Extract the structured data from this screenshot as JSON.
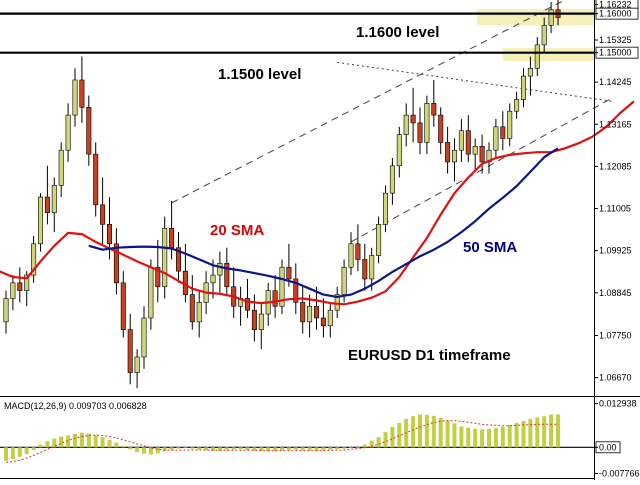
{
  "chart_data": [
    {
      "type": "candlestick",
      "pair": "EURUSD",
      "annotations": {
        "timeframe_label": "EURUSD D1 timeframe",
        "level_1600_label": "1.1600 level",
        "level_1500_label": "1.1500 level",
        "sma20_label": "20 SMA",
        "sma50_label": "50 SMA"
      },
      "price_axis": {
        "ticks": [
          "1.16232",
          "1.16000",
          "1.15325",
          "1.15000",
          "1.14245",
          "1.13165",
          "1.12085",
          "1.11005",
          "1.09925",
          "1.08845",
          "1.07750",
          "1.06670"
        ],
        "tick_values": [
          1.16232,
          1.16,
          1.15325,
          1.15,
          1.14245,
          1.13165,
          1.12085,
          1.11005,
          1.09925,
          1.08845,
          1.0775,
          1.0667
        ],
        "highlighted_ticks": [
          "1.16232",
          "1.16000",
          "1.15000"
        ],
        "range": [
          1.062,
          1.1635
        ]
      },
      "levels": [
        {
          "name": "1.1600 level",
          "value": 1.16
        },
        {
          "name": "1.1500 level",
          "value": 1.15
        }
      ],
      "candles_ohlc": [
        [
          1.081,
          1.089,
          1.078,
          1.087
        ],
        [
          1.087,
          1.093,
          1.084,
          1.091
        ],
        [
          1.091,
          1.095,
          1.086,
          1.089
        ],
        [
          1.089,
          1.094,
          1.085,
          1.093
        ],
        [
          1.093,
          1.103,
          1.091,
          1.101
        ],
        [
          1.101,
          1.114,
          1.099,
          1.113
        ],
        [
          1.113,
          1.121,
          1.106,
          1.109
        ],
        [
          1.109,
          1.118,
          1.104,
          1.116
        ],
        [
          1.116,
          1.127,
          1.113,
          1.125
        ],
        [
          1.125,
          1.137,
          1.122,
          1.134
        ],
        [
          1.134,
          1.146,
          1.131,
          1.143
        ],
        [
          1.143,
          1.149,
          1.132,
          1.136
        ],
        [
          1.136,
          1.139,
          1.121,
          1.124
        ],
        [
          1.124,
          1.127,
          1.108,
          1.111
        ],
        [
          1.111,
          1.118,
          1.101,
          1.106
        ],
        [
          1.106,
          1.113,
          1.097,
          1.101
        ],
        [
          1.101,
          1.105,
          1.088,
          1.091
        ],
        [
          1.091,
          1.094,
          1.077,
          1.079
        ],
        [
          1.079,
          1.083,
          1.065,
          1.068
        ],
        [
          1.068,
          1.074,
          1.064,
          1.072
        ],
        [
          1.072,
          1.085,
          1.069,
          1.082
        ],
        [
          1.082,
          1.097,
          1.079,
          1.095
        ],
        [
          1.095,
          1.102,
          1.086,
          1.09
        ],
        [
          1.09,
          1.108,
          1.087,
          1.105
        ],
        [
          1.105,
          1.112,
          1.097,
          1.1
        ],
        [
          1.1,
          1.104,
          1.091,
          1.094
        ],
        [
          1.094,
          1.101,
          1.086,
          1.088
        ],
        [
          1.088,
          1.093,
          1.079,
          1.081
        ],
        [
          1.081,
          1.089,
          1.077,
          1.086
        ],
        [
          1.086,
          1.094,
          1.083,
          1.091
        ],
        [
          1.091,
          1.097,
          1.087,
          1.093
        ],
        [
          1.093,
          1.099,
          1.088,
          1.096
        ],
        [
          1.096,
          1.1,
          1.088,
          1.09
        ],
        [
          1.09,
          1.095,
          1.082,
          1.085
        ],
        [
          1.085,
          1.09,
          1.08,
          1.087
        ],
        [
          1.087,
          1.092,
          1.082,
          1.084
        ],
        [
          1.084,
          1.088,
          1.076,
          1.079
        ],
        [
          1.079,
          1.086,
          1.074,
          1.083
        ],
        [
          1.083,
          1.091,
          1.08,
          1.089
        ],
        [
          1.089,
          1.093,
          1.082,
          1.085
        ],
        [
          1.085,
          1.097,
          1.083,
          1.095
        ],
        [
          1.095,
          1.101,
          1.09,
          1.092
        ],
        [
          1.092,
          1.096,
          1.083,
          1.086
        ],
        [
          1.086,
          1.09,
          1.078,
          1.081
        ],
        [
          1.081,
          1.088,
          1.077,
          1.085
        ],
        [
          1.085,
          1.09,
          1.079,
          1.082
        ],
        [
          1.082,
          1.087,
          1.077,
          1.08
        ],
        [
          1.08,
          1.086,
          1.077,
          1.084
        ],
        [
          1.084,
          1.09,
          1.082,
          1.088
        ],
        [
          1.088,
          1.097,
          1.086,
          1.095
        ],
        [
          1.095,
          1.104,
          1.093,
          1.101
        ],
        [
          1.101,
          1.106,
          1.094,
          1.097
        ],
        [
          1.097,
          1.101,
          1.089,
          1.092
        ],
        [
          1.092,
          1.1,
          1.089,
          1.098
        ],
        [
          1.098,
          1.108,
          1.096,
          1.106
        ],
        [
          1.106,
          1.116,
          1.104,
          1.114
        ],
        [
          1.114,
          1.123,
          1.111,
          1.121
        ],
        [
          1.121,
          1.131,
          1.118,
          1.129
        ],
        [
          1.129,
          1.137,
          1.126,
          1.134
        ],
        [
          1.134,
          1.141,
          1.127,
          1.132
        ],
        [
          1.132,
          1.136,
          1.124,
          1.127
        ],
        [
          1.127,
          1.139,
          1.124,
          1.137
        ],
        [
          1.137,
          1.143,
          1.131,
          1.134
        ],
        [
          1.134,
          1.136,
          1.124,
          1.127
        ],
        [
          1.127,
          1.131,
          1.119,
          1.122
        ],
        [
          1.122,
          1.128,
          1.117,
          1.125
        ],
        [
          1.125,
          1.133,
          1.122,
          1.13
        ],
        [
          1.13,
          1.134,
          1.122,
          1.124
        ],
        [
          1.124,
          1.128,
          1.12,
          1.126
        ],
        [
          1.126,
          1.129,
          1.119,
          1.122
        ],
        [
          1.122,
          1.127,
          1.119,
          1.125
        ],
        [
          1.125,
          1.133,
          1.123,
          1.131
        ],
        [
          1.131,
          1.135,
          1.125,
          1.128
        ],
        [
          1.128,
          1.137,
          1.126,
          1.135
        ],
        [
          1.135,
          1.14,
          1.133,
          1.138
        ],
        [
          1.138,
          1.146,
          1.136,
          1.144
        ],
        [
          1.144,
          1.149,
          1.139,
          1.146
        ],
        [
          1.146,
          1.154,
          1.144,
          1.152
        ],
        [
          1.152,
          1.159,
          1.15,
          1.157
        ],
        [
          1.157,
          1.163,
          1.155,
          1.161
        ],
        [
          1.161,
          1.164,
          1.157,
          1.159
        ]
      ],
      "sma20": [
        1.094,
        1.0925,
        1.0922,
        1.0965,
        1.1005,
        1.1038,
        1.1035,
        1.1015,
        1.0998,
        1.0982,
        1.0965,
        1.095,
        1.0935,
        1.0915,
        1.0895,
        1.0885,
        1.0882,
        1.0875,
        1.0862,
        1.0858,
        1.0862,
        1.0868,
        1.087,
        1.0865,
        1.0858,
        1.0855,
        1.0862,
        1.0872,
        1.0888,
        1.0925,
        1.0975,
        1.1025,
        1.1085,
        1.114,
        1.118,
        1.1215,
        1.123,
        1.1238,
        1.1242,
        1.1245,
        1.1245,
        1.1255,
        1.1268,
        1.1285,
        1.131,
        1.1345,
        1.1375
      ],
      "sma50": [
        1.1005,
        1.0995,
        1.1,
        1.1002,
        1.1003,
        1.1002,
        1.0998,
        1.0985,
        1.097,
        1.0955,
        1.0947,
        1.0942,
        1.0935,
        1.0928,
        1.092,
        1.091,
        1.0895,
        1.088,
        1.0874,
        1.088,
        1.0895,
        1.0915,
        1.0938,
        1.0958,
        1.0978,
        1.0995,
        1.1015,
        1.104,
        1.1068,
        1.11,
        1.1128,
        1.1158,
        1.1195,
        1.1232,
        1.1255
      ],
      "trendlines": [
        "upper channel",
        "lower channel",
        "descending trendline"
      ]
    },
    {
      "type": "bar",
      "title": "MACD(12,26,9) 0.009703 0.006828",
      "indicator": "MACD(12,26,9)",
      "macd_value": 0.009703,
      "signal_value": 0.006828,
      "axis_ticks": [
        "0.012938",
        "0.00",
        "-0.007766"
      ],
      "range": [
        -0.0085,
        0.014
      ],
      "histogram": [
        -0.004,
        -0.0035,
        -0.0028,
        -0.002,
        -0.0008,
        0.0008,
        0.0018,
        0.0026,
        0.0032,
        0.0035,
        0.004,
        0.0043,
        0.0041,
        0.0036,
        0.003,
        0.0022,
        0.0014,
        0.0004,
        -0.0006,
        -0.0014,
        -0.0019,
        -0.0021,
        -0.0018,
        -0.0012,
        -0.0008,
        -0.0004,
        -0.0002,
        -0.0004,
        -0.0007,
        -0.0009,
        -0.001,
        -0.0011,
        -0.0009,
        -0.0007,
        -0.0006,
        -0.0008,
        -0.001,
        -0.0011,
        -0.0012,
        -0.0012,
        -0.001,
        -0.0009,
        -0.0008,
        -0.0009,
        -0.001,
        -0.0011,
        -0.001,
        -0.0008,
        -0.0006,
        -0.0004,
        -0.0002,
        0.0,
        0.0008,
        0.002,
        0.003,
        0.0045,
        0.006,
        0.0072,
        0.0084,
        0.0092,
        0.0097,
        0.0096,
        0.0093,
        0.0087,
        0.0079,
        0.0071,
        0.0062,
        0.0058,
        0.0055,
        0.0053,
        0.0054,
        0.0057,
        0.0061,
        0.0066,
        0.0072,
        0.0078,
        0.0084,
        0.0088,
        0.0092,
        0.0097,
        0.0097
      ],
      "signal": [
        -0.0044,
        -0.0042,
        -0.0038,
        -0.0032,
        -0.0024,
        -0.0015,
        -0.0006,
        0.0003,
        0.0012,
        0.002,
        0.0027,
        0.0032,
        0.0035,
        0.0036,
        0.0035,
        0.0032,
        0.0028,
        0.0022,
        0.0016,
        0.001,
        0.0004,
        -0.0002,
        -0.0006,
        -0.0008,
        -0.0009,
        -0.0009,
        -0.0008,
        -0.0008,
        -0.0008,
        -0.0008,
        -0.0009,
        -0.0009,
        -0.0009,
        -0.0009,
        -0.0009,
        -0.0009,
        -0.0009,
        -0.001,
        -0.001,
        -0.001,
        -0.001,
        -0.001,
        -0.001,
        -0.001,
        -0.001,
        -0.001,
        -0.001,
        -0.0009,
        -0.0009,
        -0.0008,
        -0.0006,
        -0.0004,
        -0.0001,
        0.0003,
        0.0009,
        0.0016,
        0.0025,
        0.0034,
        0.0043,
        0.0052,
        0.006,
        0.0067,
        0.0073,
        0.0077,
        0.0079,
        0.0079,
        0.0077,
        0.0074,
        0.0071,
        0.0068,
        0.0066,
        0.0065,
        0.0064,
        0.0064,
        0.0065,
        0.0066,
        0.0067,
        0.0068,
        0.0068,
        0.0068,
        0.0068
      ]
    }
  ]
}
